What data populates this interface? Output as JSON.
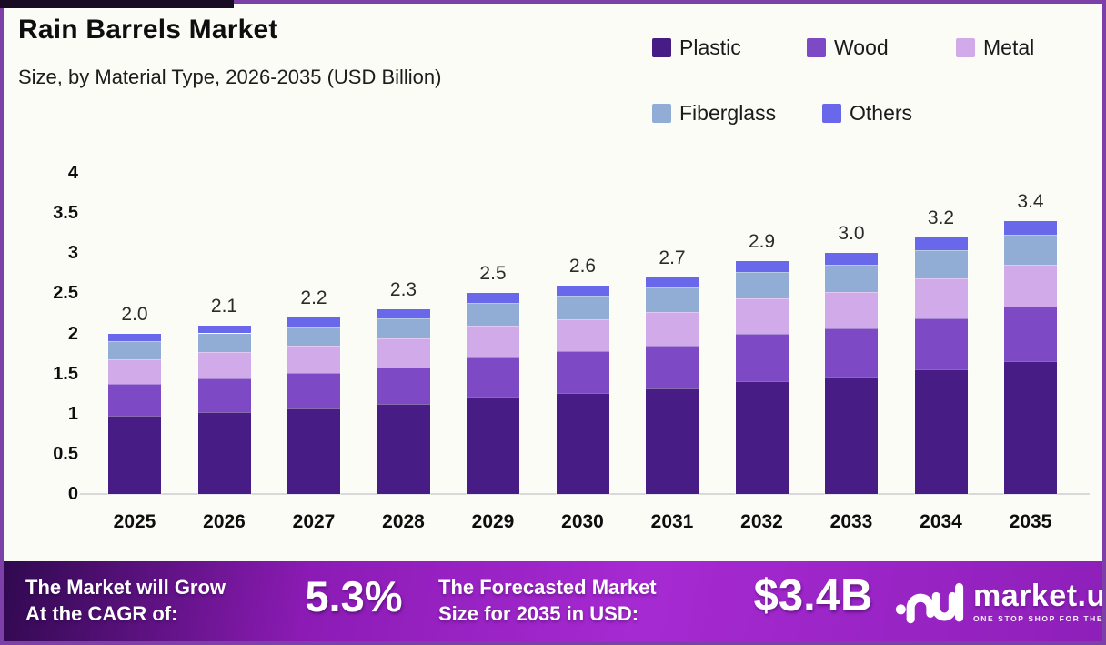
{
  "header": {
    "title": "Rain Barrels Market",
    "subtitle": "Size, by Material Type, 2026-2035 (USD Billion)"
  },
  "chart_data": {
    "type": "bar",
    "stacked": true,
    "title": "Rain Barrels Market",
    "subtitle": "Size, by Material Type, 2026-2035 (USD Billion)",
    "unit": "USD Billion",
    "categories": [
      "2025",
      "2026",
      "2027",
      "2028",
      "2029",
      "2030",
      "2031",
      "2032",
      "2033",
      "2034",
      "2035"
    ],
    "series": [
      {
        "name": "Plastic",
        "color": "#471c85",
        "values": [
          0.97,
          1.02,
          1.07,
          1.12,
          1.21,
          1.26,
          1.31,
          1.41,
          1.46,
          1.55,
          1.65
        ]
      },
      {
        "name": "Wood",
        "color": "#7d49c4",
        "values": [
          0.4,
          0.42,
          0.44,
          0.46,
          0.5,
          0.52,
          0.54,
          0.58,
          0.6,
          0.64,
          0.68
        ]
      },
      {
        "name": "Metal",
        "color": "#d1abe9",
        "values": [
          0.31,
          0.33,
          0.34,
          0.36,
          0.39,
          0.4,
          0.42,
          0.45,
          0.46,
          0.5,
          0.53
        ]
      },
      {
        "name": "Fiberglass",
        "color": "#92add5",
        "values": [
          0.22,
          0.23,
          0.24,
          0.25,
          0.28,
          0.29,
          0.3,
          0.32,
          0.33,
          0.35,
          0.37
        ]
      },
      {
        "name": "Others",
        "color": "#6a68ea",
        "values": [
          0.1,
          0.1,
          0.11,
          0.11,
          0.12,
          0.13,
          0.13,
          0.14,
          0.15,
          0.16,
          0.17
        ]
      }
    ],
    "totals": [
      2.0,
      2.1,
      2.2,
      2.3,
      2.5,
      2.6,
      2.7,
      2.9,
      3.0,
      3.2,
      3.4
    ],
    "total_labels": [
      "2.0",
      "2.1",
      "2.2",
      "2.3",
      "2.5",
      "2.6",
      "2.7",
      "2.9",
      "3.0",
      "3.2",
      "3.4"
    ],
    "ylim": [
      0,
      4
    ],
    "yticks": [
      0,
      0.5,
      1,
      1.5,
      2,
      2.5,
      3,
      3.5,
      4
    ],
    "ytick_labels": [
      "0",
      "0.5",
      "1",
      "1.5",
      "2",
      "2.5",
      "3",
      "3.5",
      "4"
    ],
    "grid": false,
    "legend_position": "top-right",
    "legend": [
      "Plastic",
      "Wood",
      "Metal",
      "Fiberglass",
      "Others"
    ]
  },
  "footer": {
    "cagr_label_line1": "The Market will Grow",
    "cagr_label_line2": "At the CAGR of:",
    "cagr_value": "5.3%",
    "forecast_label_line1": "The Forecasted Market",
    "forecast_label_line2": "Size for 2035 in USD:",
    "forecast_value": "$3.4B",
    "brand_name": "market.us",
    "brand_tagline": "ONE STOP SHOP FOR THE REPORTS"
  },
  "colors": {
    "plastic": "#471c85",
    "wood": "#7d49c4",
    "metal": "#d1abe9",
    "fiberglass": "#92add5",
    "others": "#6a68ea",
    "border": "#7d3fa8",
    "background": "#fcfcf6",
    "baseline": "#d9d9d9",
    "footer_gradient_start": "#30094f",
    "footer_gradient_mid": "#a62ad2",
    "footer_gradient_end": "#8e1fb9"
  }
}
